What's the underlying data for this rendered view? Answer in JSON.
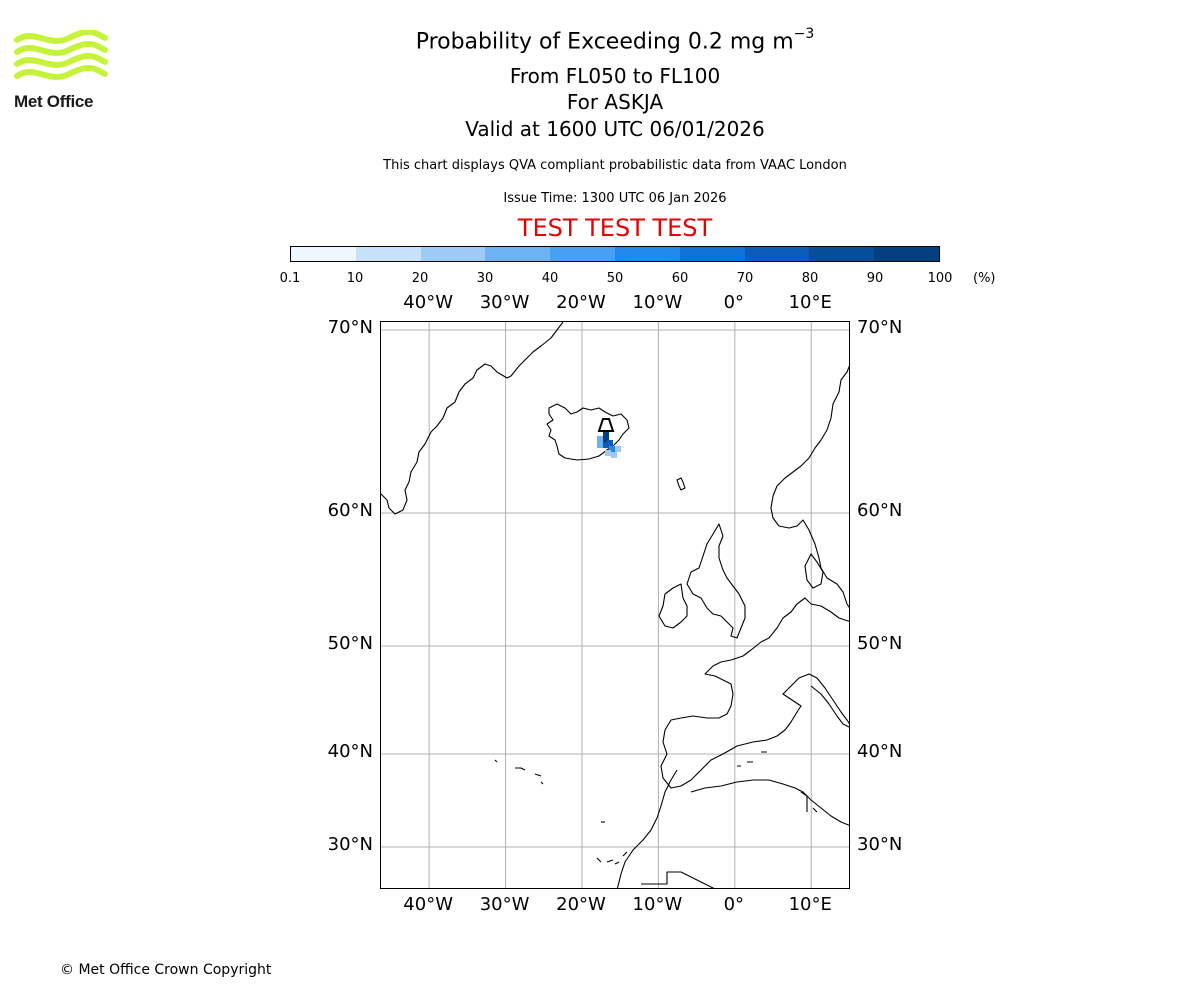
{
  "logo": {
    "text": "Met Office",
    "color": "#c6f33a"
  },
  "title": {
    "main": "Probability of Exceeding 0.2 mg m",
    "main_sup": "−3",
    "levels": "From FL050 to FL100",
    "volcano": "For ASKJA",
    "valid": "Valid at 1600 UTC 06/01/2026",
    "description": "This chart displays QVA compliant probabilistic data from VAAC London",
    "issue": "Issue Time: 1300 UTC 06 Jan 2026",
    "test_banner": "TEST TEST TEST"
  },
  "colorbar": {
    "ticks": [
      "0.1",
      "10",
      "20",
      "30",
      "40",
      "50",
      "60",
      "70",
      "80",
      "90",
      "100"
    ],
    "unit": "(%)",
    "colors": [
      "#eef6fe",
      "#c6e1f9",
      "#9dcbf6",
      "#6db2f2",
      "#48a0f0",
      "#2189ec",
      "#1071d6",
      "#0a5cb8",
      "#064d9a",
      "#04407f",
      "#022b57"
    ]
  },
  "map": {
    "lon_labels": [
      "40°W",
      "30°W",
      "20°W",
      "10°W",
      "0°",
      "10°E"
    ],
    "lat_labels": [
      "70°N",
      "60°N",
      "50°N",
      "40°N",
      "30°N"
    ],
    "extent": {
      "lon_min": -46.3,
      "lon_max": 15.2,
      "lat_min": 26,
      "lat_max": 70.5
    },
    "volcano_name": "ASKJA",
    "plume_probability_pct": [
      80,
      60,
      40,
      20,
      10
    ]
  },
  "copyright": "© Met Office Crown Copyright"
}
